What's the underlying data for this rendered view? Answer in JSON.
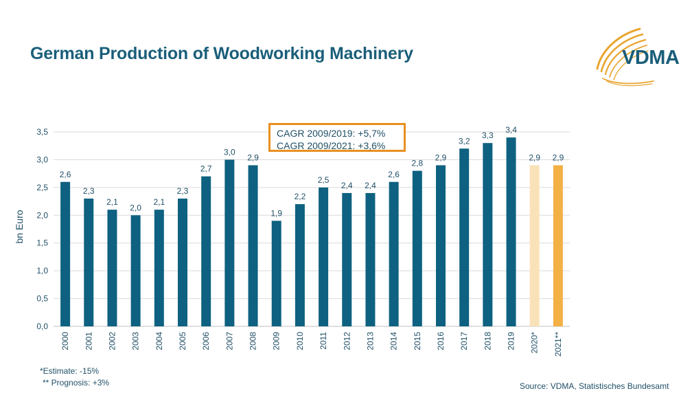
{
  "title": "German Production of Woodworking Machinery",
  "logo": {
    "text": "VDMA",
    "icon": "vdma-swoosh-logo"
  },
  "annotation": {
    "line1": "CAGR 2009/2019: +5,7%",
    "line2": "CAGR 2009/2021: +3,6%",
    "border_color": "#e89020"
  },
  "footnotes": {
    "estimate": "*Estimate: -15%",
    "prognosis": "** Prognosis: +3%"
  },
  "source": "Source: VDMA, Statistisches Bundesamt",
  "colors": {
    "actual": "#0e6180",
    "estimate": "#f9e2b8",
    "prognosis": "#f3b045",
    "text": "#1f4f66"
  },
  "chart_data": {
    "type": "bar",
    "categories": [
      "2000",
      "2001",
      "2002",
      "2003",
      "2004",
      "2005",
      "2006",
      "2007",
      "2008",
      "2009",
      "2010",
      "2011",
      "2012",
      "2013",
      "2014",
      "2015",
      "2016",
      "2017",
      "2018",
      "2019",
      "2020*",
      "2021**"
    ],
    "values": [
      2.6,
      2.3,
      2.1,
      2.0,
      2.1,
      2.3,
      2.7,
      3.0,
      2.9,
      1.9,
      2.2,
      2.5,
      2.4,
      2.4,
      2.6,
      2.8,
      2.9,
      3.2,
      3.3,
      3.4,
      2.9,
      2.9
    ],
    "data_labels": [
      "2,6",
      "2,3",
      "2,1",
      "2,0",
      "2,1",
      "2,3",
      "2,7",
      "3,0",
      "2,9",
      "1,9",
      "2,2",
      "2,5",
      "2,4",
      "2,4",
      "2,6",
      "2,8",
      "2,9",
      "3,2",
      "3,3",
      "3,4",
      "2,9",
      "2,9"
    ],
    "bar_kinds": [
      "actual",
      "actual",
      "actual",
      "actual",
      "actual",
      "actual",
      "actual",
      "actual",
      "actual",
      "actual",
      "actual",
      "actual",
      "actual",
      "actual",
      "actual",
      "actual",
      "actual",
      "actual",
      "actual",
      "actual",
      "estimate",
      "prognosis"
    ],
    "title": "",
    "xlabel": "",
    "ylabel": "bn Euro",
    "ylim": [
      0,
      3.5
    ],
    "yticks": [
      0,
      0.5,
      1.0,
      1.5,
      2.0,
      2.5,
      3.0,
      3.5
    ],
    "ytick_labels": [
      "0,0",
      "0,5",
      "1,0",
      "1,5",
      "2,0",
      "2,5",
      "3,0",
      "3,5"
    ],
    "grid": true,
    "legend": "none"
  }
}
